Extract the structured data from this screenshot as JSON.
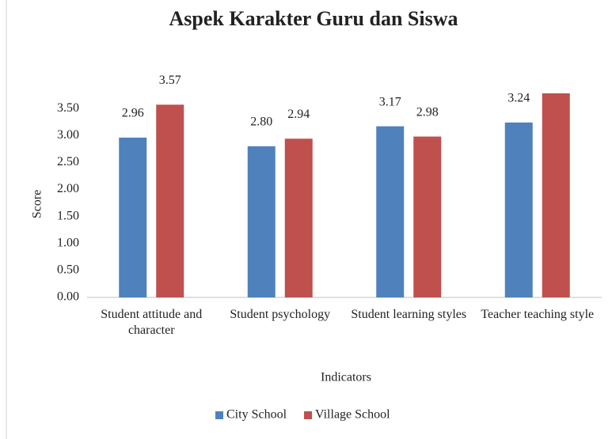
{
  "chart_data": {
    "type": "bar",
    "title": "Aspek Karakter Guru dan Siswa",
    "categories": [
      "Student attitude and character",
      "Student psychology",
      "Student learning styles",
      "Teacher teaching style"
    ],
    "series": [
      {
        "name": "City School",
        "color": "#4f81bd",
        "values": [
          2.96,
          2.8,
          3.17,
          3.24
        ],
        "value_labels": [
          "2.96",
          "2.80",
          "3.17",
          "3.24"
        ]
      },
      {
        "name": "Village School",
        "color": "#c0504d",
        "values": [
          3.57,
          2.94,
          2.98,
          3.78
        ],
        "value_labels": [
          "3.57",
          "2.94",
          "2.98",
          null
        ]
      }
    ],
    "x_label": "Indicators",
    "y_label": "Score",
    "ylim": [
      0,
      4
    ],
    "yticks": [
      {
        "value": 0,
        "label": "0.00"
      },
      {
        "value": 0.5,
        "label": "0.50"
      },
      {
        "value": 1,
        "label": "1.00"
      },
      {
        "value": 1.5,
        "label": "1.50"
      },
      {
        "value": 2,
        "label": "2.00"
      },
      {
        "value": 2.5,
        "label": "2.50"
      },
      {
        "value": 3,
        "label": "3.00"
      },
      {
        "value": 3.5,
        "label": "3.50"
      }
    ],
    "legend": "bottom",
    "grid": false
  }
}
